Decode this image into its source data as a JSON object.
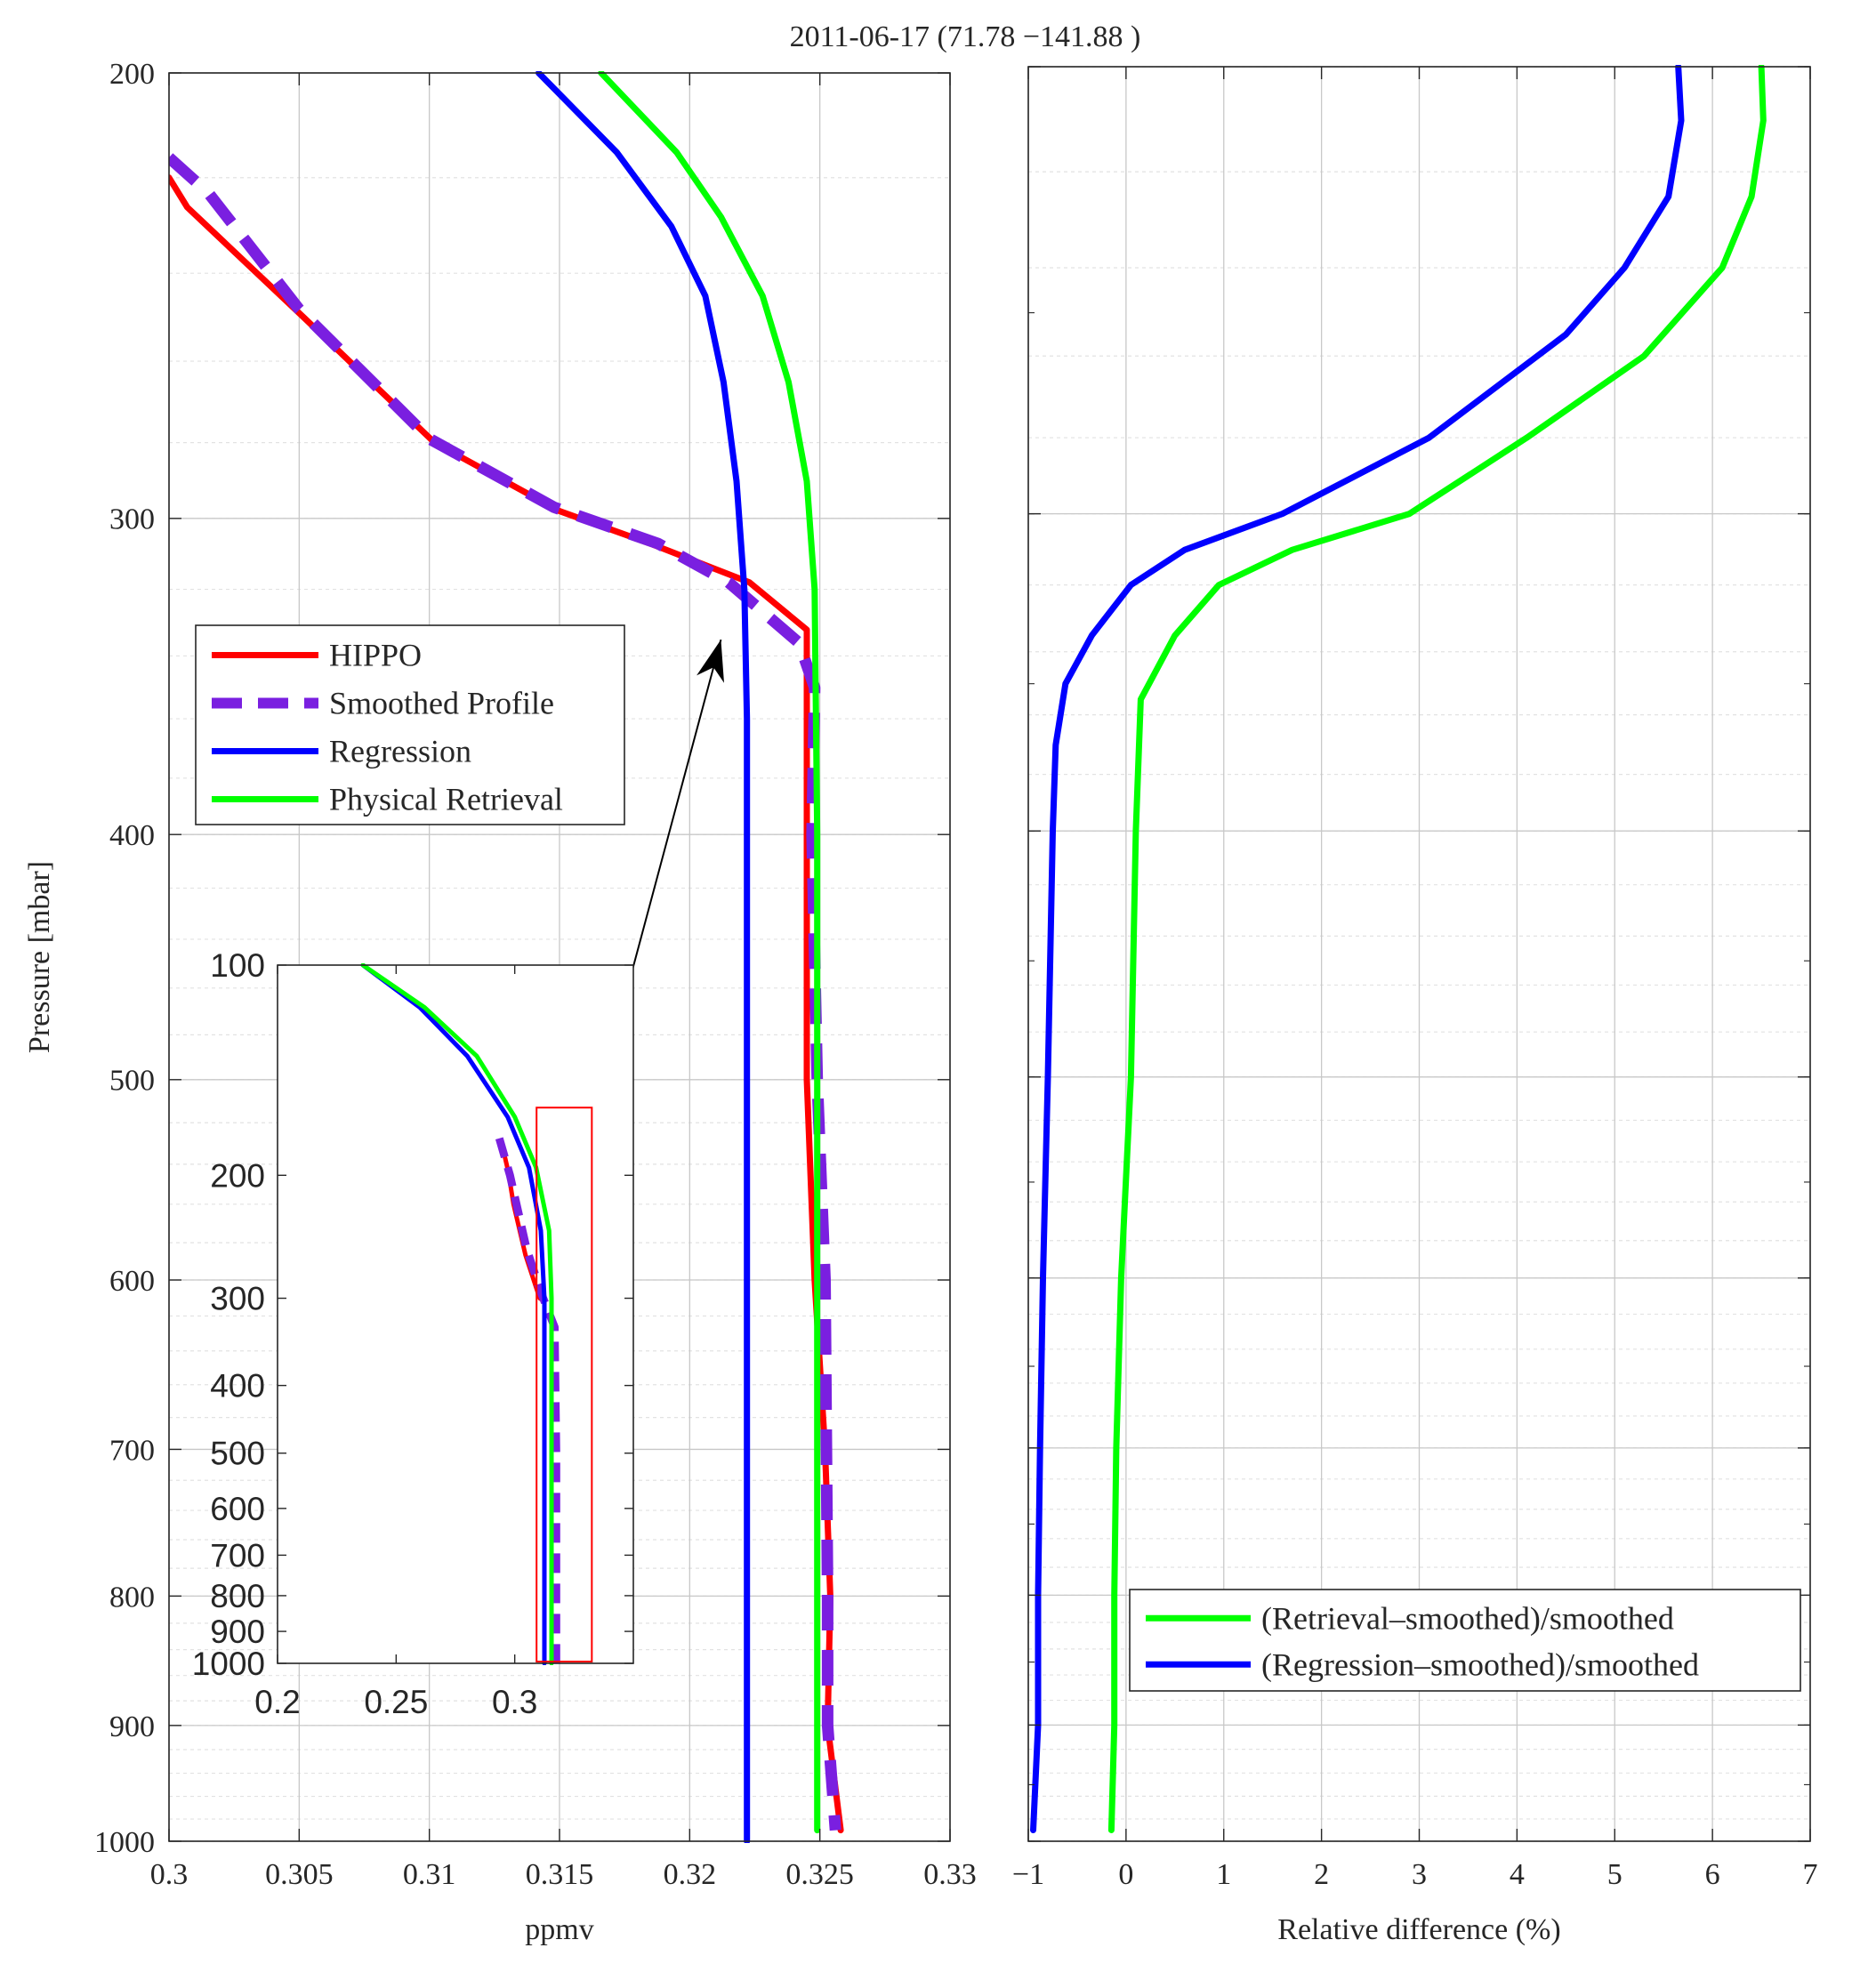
{
  "title": "2011-06-17 (71.78  −141.88 )",
  "colors": {
    "hippo": "#ff0000",
    "smoothed": "#7a1fe0",
    "regression": "#0000ff",
    "retrieval": "#00ff00",
    "axis": "#262626",
    "grid": "#c8c8c8",
    "inset_box": "#ff0000",
    "arrow": "#000000"
  },
  "chart_data": [
    {
      "id": "left",
      "type": "line",
      "title": "",
      "xlabel": "ppmv",
      "ylabel": "Pressure [mbar]",
      "xlim": [
        0.3,
        0.33
      ],
      "ylim": [
        200,
        1000
      ],
      "yscale": "log",
      "yreverse": true,
      "grid": true,
      "legend_position": "middle-left",
      "x_ticks": [
        0.3,
        0.305,
        0.31,
        0.315,
        0.32,
        0.325,
        0.33
      ],
      "x_tick_labels": [
        "0.3",
        "0.305",
        "0.31",
        "0.315",
        "0.32",
        "0.325",
        "0.33"
      ],
      "y_ticks": [
        200,
        300,
        400,
        500,
        600,
        700,
        800,
        900,
        1000
      ],
      "y_tick_labels": [
        "200",
        "300",
        "400",
        "500",
        "600",
        "700",
        "800",
        "900",
        "1000"
      ],
      "legend": [
        "HIPPO",
        "Smoothed Profile",
        "Regression",
        "Physical Retrieval"
      ],
      "series": [
        {
          "name": "HIPPO",
          "color_key": "hippo",
          "dash": "solid",
          "points": [
            [
              0.3,
              220
            ],
            [
              0.3007,
              226
            ],
            [
              0.3052,
              250
            ],
            [
              0.3102,
              280
            ],
            [
              0.315,
              298
            ],
            [
              0.3185,
              307
            ],
            [
              0.3223,
              318
            ],
            [
              0.3245,
              332
            ],
            [
              0.3245,
              400
            ],
            [
              0.3245,
              500
            ],
            [
              0.3248,
              600
            ],
            [
              0.3252,
              700
            ],
            [
              0.3254,
              800
            ],
            [
              0.3253,
              900
            ],
            [
              0.3258,
              990
            ]
          ]
        },
        {
          "name": "Smoothed Profile",
          "color_key": "smoothed",
          "dash": "dashed",
          "points": [
            [
              0.3,
              216
            ],
            [
              0.3015,
              223
            ],
            [
              0.305,
              248
            ],
            [
              0.31,
              279
            ],
            [
              0.3148,
              297
            ],
            [
              0.3188,
              307
            ],
            [
              0.3215,
              318
            ],
            [
              0.3242,
              336
            ],
            [
              0.3248,
              350
            ],
            [
              0.3247,
              400
            ],
            [
              0.3249,
              500
            ],
            [
              0.3252,
              600
            ],
            [
              0.3253,
              800
            ],
            [
              0.3253,
              900
            ],
            [
              0.3256,
              990
            ]
          ]
        },
        {
          "name": "Regression",
          "color_key": "regression",
          "dash": "solid",
          "points": [
            [
              0.3142,
              200
            ],
            [
              0.3172,
              215
            ],
            [
              0.3193,
              230
            ],
            [
              0.3206,
              245
            ],
            [
              0.3213,
              265
            ],
            [
              0.3218,
              290
            ],
            [
              0.3221,
              320
            ],
            [
              0.3222,
              360
            ],
            [
              0.3222,
              450
            ],
            [
              0.3222,
              600
            ],
            [
              0.3222,
              800
            ],
            [
              0.3222,
              1000
            ]
          ]
        },
        {
          "name": "Physical Retrieval",
          "color_key": "retrieval",
          "dash": "solid",
          "points": [
            [
              0.3166,
              200
            ],
            [
              0.3195,
              215
            ],
            [
              0.3212,
              228
            ],
            [
              0.3228,
              245
            ],
            [
              0.3238,
              265
            ],
            [
              0.3245,
              290
            ],
            [
              0.3248,
              320
            ],
            [
              0.3249,
              400
            ],
            [
              0.3249,
              600
            ],
            [
              0.3249,
              800
            ],
            [
              0.3249,
              990
            ]
          ]
        }
      ]
    },
    {
      "id": "inset",
      "type": "line",
      "title": "",
      "xlabel": "",
      "ylabel": "",
      "xlim": [
        0.2,
        0.35
      ],
      "ylim": [
        100,
        1000
      ],
      "yscale": "log",
      "yreverse": true,
      "grid": false,
      "x_ticks": [
        0.2,
        0.25,
        0.3
      ],
      "x_tick_labels": [
        "0.2",
        "0.25",
        "0.3"
      ],
      "y_ticks": [
        100,
        200,
        300,
        400,
        500,
        600,
        700,
        800,
        900,
        1000
      ],
      "y_tick_labels": [
        "100",
        "200",
        "300",
        "400",
        "500",
        "600",
        "700",
        "800",
        "900",
        "1000"
      ],
      "highlight_box": {
        "x": [
          0.3092,
          0.3325
        ],
        "y": [
          160,
          1000
        ]
      },
      "series": [
        {
          "name": "HIPPO",
          "color_key": "hippo",
          "dash": "solid",
          "points": [
            [
              0.2945,
              180
            ],
            [
              0.2972,
              197
            ],
            [
              0.2995,
              220
            ],
            [
              0.3045,
              260
            ],
            [
              0.3105,
              300
            ],
            [
              0.3125,
              303
            ]
          ]
        },
        {
          "name": "Smoothed Profile",
          "color_key": "smoothed",
          "dash": "dashed",
          "points": [
            [
              0.2935,
              177
            ],
            [
              0.298,
              200
            ],
            [
              0.305,
              255
            ],
            [
              0.3115,
              297
            ],
            [
              0.3168,
              330
            ],
            [
              0.3175,
              500
            ],
            [
              0.3175,
              1000
            ]
          ]
        },
        {
          "name": "Regression",
          "color_key": "regression",
          "dash": "solid",
          "points": [
            [
              0.236,
              100
            ],
            [
              0.26,
              115
            ],
            [
              0.28,
              135
            ],
            [
              0.297,
              165
            ],
            [
              0.306,
              195
            ],
            [
              0.311,
              240
            ],
            [
              0.3125,
              300
            ],
            [
              0.3125,
              500
            ],
            [
              0.3125,
              1000
            ]
          ]
        },
        {
          "name": "Physical Retrieval",
          "color_key": "retrieval",
          "dash": "solid",
          "points": [
            [
              0.236,
              100
            ],
            [
              0.262,
              115
            ],
            [
              0.284,
              135
            ],
            [
              0.3,
              165
            ],
            [
              0.309,
              195
            ],
            [
              0.3145,
              240
            ],
            [
              0.3155,
              300
            ],
            [
              0.3155,
              500
            ],
            [
              0.3155,
              1000
            ]
          ]
        }
      ]
    },
    {
      "id": "right",
      "type": "line",
      "title": "",
      "xlabel": "Relative difference (%)",
      "ylabel": "",
      "xlim": [
        -1,
        7
      ],
      "ylim": [
        200,
        1000
      ],
      "yscale": "log",
      "yreverse": true,
      "grid": true,
      "legend_position": "bottom-right",
      "x_ticks": [
        -1,
        0,
        1,
        2,
        3,
        4,
        5,
        6,
        7
      ],
      "x_tick_labels": [
        "−1",
        "0",
        "1",
        "2",
        "3",
        "4",
        "5",
        "6",
        "7"
      ],
      "y_ticks": [
        200,
        300,
        400,
        500,
        600,
        700,
        800,
        900,
        1000
      ],
      "legend": [
        "(Retrieval–smoothed)/smoothed",
        "(Regression–smoothed)/smoothed"
      ],
      "series": [
        {
          "name": "(Retrieval–smoothed)/smoothed",
          "color_key": "retrieval",
          "dash": "solid",
          "points": [
            [
              6.5,
              200
            ],
            [
              6.52,
              210
            ],
            [
              6.4,
              225
            ],
            [
              6.1,
              240
            ],
            [
              5.3,
              260
            ],
            [
              4.1,
              280
            ],
            [
              2.9,
              300
            ],
            [
              1.7,
              310
            ],
            [
              0.95,
              320
            ],
            [
              0.5,
              335
            ],
            [
              0.15,
              355
            ],
            [
              0.1,
              400
            ],
            [
              0.05,
              500
            ],
            [
              -0.05,
              600
            ],
            [
              -0.1,
              700
            ],
            [
              -0.12,
              800
            ],
            [
              -0.12,
              900
            ],
            [
              -0.15,
              990
            ]
          ]
        },
        {
          "name": "(Regression–smoothed)/smoothed",
          "color_key": "regression",
          "dash": "solid",
          "points": [
            [
              5.65,
              200
            ],
            [
              5.68,
              210
            ],
            [
              5.55,
              225
            ],
            [
              5.1,
              240
            ],
            [
              4.5,
              255
            ],
            [
              3.1,
              280
            ],
            [
              1.6,
              300
            ],
            [
              0.6,
              310
            ],
            [
              0.05,
              320
            ],
            [
              -0.35,
              335
            ],
            [
              -0.62,
              350
            ],
            [
              -0.72,
              370
            ],
            [
              -0.75,
              400
            ],
            [
              -0.8,
              500
            ],
            [
              -0.85,
              600
            ],
            [
              -0.88,
              700
            ],
            [
              -0.9,
              800
            ],
            [
              -0.9,
              900
            ],
            [
              -0.95,
              990
            ]
          ]
        }
      ]
    }
  ]
}
